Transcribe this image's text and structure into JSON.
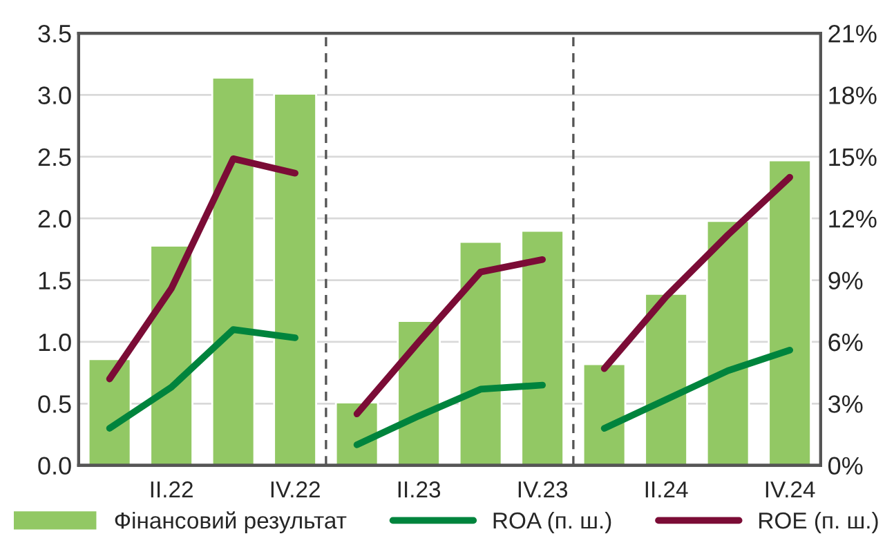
{
  "chart_data": {
    "type": "bar",
    "categories": [
      null,
      "II.22",
      null,
      "IV.22",
      null,
      "II.23",
      null,
      "IV.23",
      null,
      "II.24",
      null,
      "IV.24"
    ],
    "series": [
      {
        "name": "Фінансовий результат",
        "color": "#92c864",
        "values": [
          0.86,
          1.78,
          3.14,
          3.01,
          0.51,
          1.17,
          1.81,
          1.9,
          0.82,
          1.39,
          1.98,
          2.47
        ]
      },
      {
        "name": "ROA (п. ш.)",
        "type": "line",
        "axis": "y2",
        "color": "#00843d",
        "values": [
          1.8,
          3.8,
          6.6,
          6.2,
          null,
          null,
          null,
          null,
          null,
          null,
          null,
          null
        ]
      },
      {
        "type": "line",
        "axis": "y2",
        "color": "#00843d",
        "values": [
          null,
          null,
          null,
          null,
          1.0,
          2.4,
          3.7,
          3.9,
          null,
          null,
          null,
          null
        ]
      },
      {
        "type": "line",
        "axis": "y2",
        "color": "#00843d",
        "values": [
          null,
          null,
          null,
          null,
          null,
          null,
          null,
          null,
          1.8,
          3.2,
          4.6,
          5.6
        ]
      },
      {
        "name": "ROE (п. ш.)",
        "type": "line",
        "axis": "y2",
        "color": "#7b0c36",
        "values": [
          4.2,
          8.6,
          14.9,
          14.2,
          null,
          null,
          null,
          null,
          null,
          null,
          null,
          null
        ]
      },
      {
        "type": "line",
        "axis": "y2",
        "color": "#7b0c36",
        "values": [
          null,
          null,
          null,
          null,
          2.5,
          6.0,
          9.4,
          10.0,
          null,
          null,
          null,
          null
        ]
      },
      {
        "type": "line",
        "axis": "y2",
        "color": "#7b0c36",
        "values": [
          null,
          null,
          null,
          null,
          null,
          null,
          null,
          null,
          4.7,
          8.2,
          11.2,
          14.0
        ]
      }
    ],
    "ylim": [
      0,
      3.5
    ],
    "yticks": [
      {
        "value": 0,
        "label": "0.0"
      },
      0.5,
      {
        "value": 1,
        "label": "1.0"
      },
      1.5,
      {
        "value": 2,
        "label": "2.0"
      },
      2.5,
      {
        "value": 3,
        "label": "3.0"
      },
      3.5
    ],
    "y2lim": [
      0,
      21
    ],
    "y2ticks": [
      {
        "value": 0,
        "label": "0%"
      },
      {
        "value": 3,
        "label": "3%"
      },
      {
        "value": 6,
        "label": "6%"
      },
      {
        "value": 9,
        "label": "9%"
      },
      {
        "value": 12,
        "label": "12%"
      },
      {
        "value": 15,
        "label": "15%"
      },
      {
        "value": 18,
        "label": "18%"
      },
      {
        "value": 21,
        "label": "21%"
      }
    ],
    "grid": "y",
    "legend": "bottom",
    "marker": "none",
    "line_style": "solid"
  }
}
